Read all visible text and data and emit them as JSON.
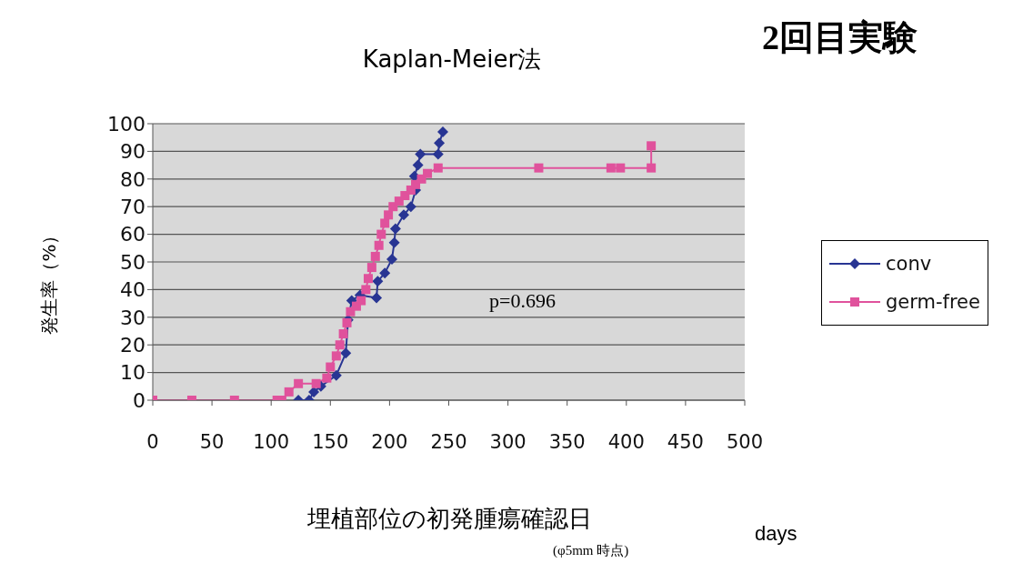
{
  "chart_data": {
    "type": "line",
    "title": "Kaplan-Meier法",
    "xlabel": "埋植部位の初発腫瘍確認日",
    "ylabel": "発生率（%）",
    "annotations": [
      "2回目実験",
      "p=0.696",
      "days",
      "(φ5mm 時点)"
    ],
    "series": [
      {
        "name": "conv",
        "color": "#283593",
        "marker": "diamond",
        "x": [
          123,
          132,
          136,
          142,
          155,
          163,
          165,
          168,
          175,
          189,
          190,
          196,
          202,
          204,
          205,
          212,
          218,
          222,
          221,
          224,
          226,
          241,
          242,
          245
        ],
        "values": [
          0,
          0,
          3,
          5,
          9,
          17,
          29,
          36,
          38,
          37,
          43,
          46,
          51,
          57,
          62,
          67,
          70,
          76,
          81,
          85,
          89,
          89,
          93,
          97
        ]
      },
      {
        "name": "germ-free",
        "color": "#e0529c",
        "marker": "square",
        "x": [
          0,
          33,
          69,
          105,
          109,
          115,
          123,
          138,
          147,
          150,
          155,
          158,
          161,
          164,
          167,
          172,
          176,
          180,
          182,
          185,
          188,
          191,
          193,
          196,
          199,
          203,
          208,
          213,
          218,
          222,
          227,
          232,
          241,
          326,
          387,
          395,
          421,
          421
        ],
        "values": [
          0,
          0,
          0,
          0,
          0,
          3,
          6,
          6,
          8,
          12,
          16,
          20,
          24,
          28,
          32,
          34,
          36,
          40,
          44,
          48,
          52,
          56,
          60,
          64,
          67,
          70,
          72,
          74,
          76,
          78,
          80,
          82,
          84,
          84,
          84,
          84,
          84,
          92
        ]
      }
    ],
    "xlim": [
      0,
      500
    ],
    "xticks": [
      0,
      50,
      100,
      150,
      200,
      250,
      300,
      350,
      400,
      450,
      500
    ],
    "ylim": [
      0,
      100
    ],
    "yticks": [
      0,
      10,
      20,
      30,
      40,
      50,
      60,
      70,
      80,
      90,
      100
    ],
    "grid": "y",
    "legend": "right",
    "line_style": "solid"
  }
}
